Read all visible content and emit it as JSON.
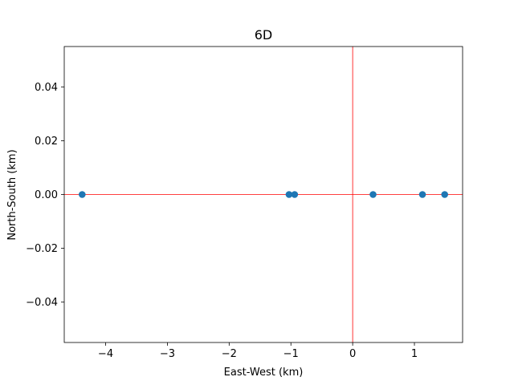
{
  "chart_data": {
    "type": "scatter",
    "title": "6D",
    "xlabel": "East-West (km)",
    "ylabel": "North-South (km)",
    "xlim": [
      -4.67,
      1.78
    ],
    "ylim": [
      -0.055,
      0.055
    ],
    "xticks": [
      -4,
      -3,
      -2,
      -1,
      0,
      1
    ],
    "yticks": [
      -0.04,
      -0.02,
      0.0,
      0.02,
      0.04
    ],
    "xtick_labels": [
      "−4",
      "−3",
      "−2",
      "−1",
      "0",
      "1"
    ],
    "ytick_labels": [
      "−0.04",
      "−0.02",
      "0.00",
      "0.02",
      "0.04"
    ],
    "grid": false,
    "reference_lines": {
      "x": 0,
      "y": 0,
      "color": "#ff0000"
    },
    "series": [
      {
        "color": "#1f77b4",
        "x": [
          -4.38,
          -1.03,
          -0.94,
          0.33,
          1.13,
          1.49
        ],
        "y": [
          0,
          0,
          0,
          0,
          0,
          0
        ]
      }
    ]
  }
}
